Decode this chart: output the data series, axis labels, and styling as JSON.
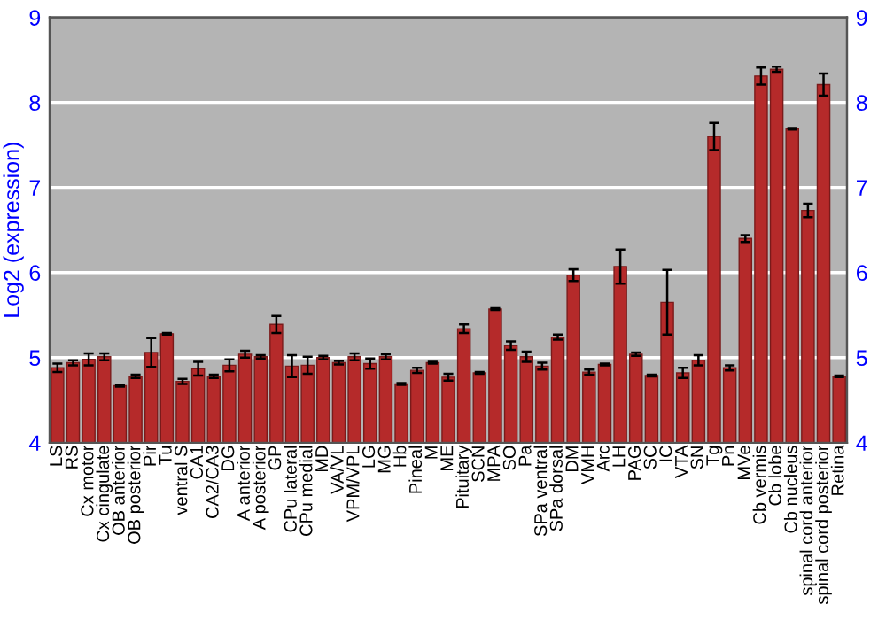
{
  "chart_data": {
    "type": "bar",
    "ylabel": "Log2 (expression)",
    "categories": [
      "LS",
      "RS",
      "Cx motor",
      "Cx cingulate",
      "OB anterior",
      "OB posterior",
      "Pir",
      "Tu",
      "ventral S",
      "CA1",
      "CA2/CA3",
      "DG",
      "A anterior",
      "A posterior",
      "GP",
      "CPu lateral",
      "CPu medial",
      "MD",
      "VA/VL",
      "VPM/VPL",
      "LG",
      "MG",
      "Hb",
      "Pineal",
      "M",
      "ME",
      "Pituitary",
      "SCN",
      "MPA",
      "SO",
      "Pa",
      "SPa ventral",
      "SPa dorsal",
      "DM",
      "VMH",
      "Arc",
      "LH",
      "PAG",
      "SC",
      "IC",
      "VTA",
      "SN",
      "Tg",
      "Pn",
      "MVe",
      "Cb vermis",
      "Cb lobe",
      "Cb nucleus",
      "spinal cord anterior",
      "spinal cord posterior",
      "Retina"
    ],
    "values": [
      4.88,
      4.94,
      4.98,
      5.01,
      4.67,
      4.78,
      5.06,
      5.28,
      4.72,
      4.87,
      4.78,
      4.91,
      5.04,
      5.01,
      5.39,
      4.9,
      4.91,
      5.0,
      4.94,
      5.01,
      4.93,
      5.01,
      4.69,
      4.85,
      4.94,
      4.77,
      5.34,
      4.82,
      5.57,
      5.14,
      5.01,
      4.9,
      5.24,
      5.97,
      4.83,
      4.92,
      6.07,
      5.04,
      4.79,
      5.65,
      4.82,
      4.97,
      7.6,
      4.88,
      6.4,
      8.31,
      8.39,
      7.69,
      6.73,
      8.21,
      4.78
    ],
    "errors": [
      0.05,
      0.03,
      0.07,
      0.04,
      0.01,
      0.02,
      0.17,
      0.01,
      0.03,
      0.08,
      0.02,
      0.07,
      0.04,
      0.02,
      0.1,
      0.13,
      0.1,
      0.02,
      0.02,
      0.04,
      0.06,
      0.03,
      0.01,
      0.03,
      0.01,
      0.04,
      0.05,
      0.01,
      0.01,
      0.05,
      0.06,
      0.04,
      0.03,
      0.07,
      0.03,
      0.01,
      0.2,
      0.02,
      0.01,
      0.38,
      0.06,
      0.06,
      0.16,
      0.03,
      0.04,
      0.1,
      0.03,
      0.01,
      0.08,
      0.13,
      0.01
    ],
    "color": "#b52a2a",
    "ylim": [
      4,
      9
    ],
    "yticks": [
      4,
      5,
      6,
      7,
      8,
      9
    ],
    "y2lim": [
      4,
      9
    ],
    "y2ticks": [
      4,
      5,
      6,
      7,
      8,
      9
    ],
    "grid": "y"
  }
}
